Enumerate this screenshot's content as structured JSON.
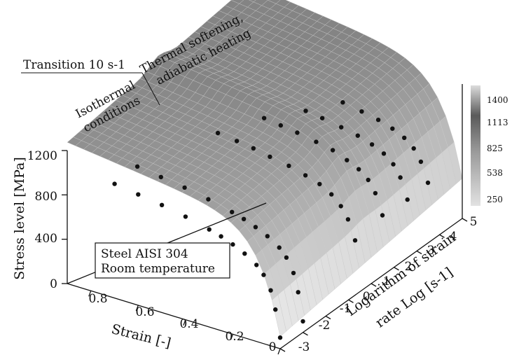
{
  "chart_data": {
    "type": "surface-3d",
    "zlabel": "Stress level [MPa]",
    "xlabel": "Strain [-]",
    "ylabel_line1": "Logarithm of strain",
    "ylabel_line2": "rate Log [s-1]",
    "z_ticks": [
      "0",
      "400",
      "800",
      "1200"
    ],
    "x_ticks": [
      "0.8",
      "0.6",
      "0.4",
      "0.2",
      "0"
    ],
    "y_ticks": [
      "-3",
      "-2",
      "-1",
      "0",
      "1",
      "2",
      "3",
      "4",
      "5"
    ],
    "zlim": [
      0,
      1400
    ],
    "xlim": [
      0,
      0.9
    ],
    "ylim": [
      -3,
      5
    ],
    "colorbar": {
      "ticks": [
        "1400",
        "1113",
        "825",
        "538",
        "250"
      ],
      "range": [
        250,
        1400
      ],
      "colors": [
        "#dedede",
        "#5a5a5a"
      ]
    },
    "annotations": {
      "transition": "Transition 10 s-1",
      "isothermal_line1": "Isothermal",
      "isothermal_line2": "conditions",
      "softening_line1": "Thermal softening,",
      "softening_line2": "adiabatic heating",
      "material_line1": "Steel AISI 304",
      "material_line2": "Room temperature"
    },
    "series": [
      {
        "log_rate": -3.0,
        "strain": [
          0.0,
          0.02,
          0.04,
          0.07,
          0.1,
          0.15,
          0.2,
          0.25,
          0.3,
          0.4,
          0.5,
          0.6,
          0.7
        ],
        "stress": [
          100,
          340,
          500,
          620,
          690,
          760,
          810,
          850,
          880,
          930,
          970,
          1000,
          1030
        ]
      },
      {
        "log_rate": -2.0,
        "strain": [
          0.0,
          0.02,
          0.04,
          0.07,
          0.1,
          0.15,
          0.2,
          0.25,
          0.3,
          0.4,
          0.5,
          0.6,
          0.7
        ],
        "stress": [
          100,
          350,
          510,
          630,
          700,
          770,
          820,
          860,
          890,
          940,
          980,
          1010,
          1040
        ]
      },
      {
        "log_rate": 0.5,
        "strain": [
          0.02,
          0.05,
          0.08,
          0.12,
          0.17,
          0.23,
          0.3,
          0.38,
          0.45,
          0.52,
          0.6
        ],
        "stress": [
          450,
          620,
          720,
          800,
          860,
          900,
          940,
          970,
          1000,
          1020,
          1040
        ]
      },
      {
        "log_rate": 1.7,
        "strain": [
          0.02,
          0.05,
          0.08,
          0.12,
          0.17,
          0.23,
          0.3,
          0.38,
          0.45,
          0.52
        ],
        "stress": [
          500,
          680,
          780,
          850,
          900,
          950,
          980,
          1010,
          1030,
          1050
        ]
      },
      {
        "log_rate": 2.8,
        "strain": [
          0.02,
          0.05,
          0.08,
          0.12,
          0.17,
          0.23,
          0.3,
          0.38,
          0.45
        ],
        "stress": [
          480,
          660,
          760,
          830,
          880,
          920,
          950,
          980,
          1000
        ]
      },
      {
        "log_rate": 3.7,
        "strain": [
          0.02,
          0.05,
          0.08,
          0.12,
          0.17,
          0.23,
          0.3,
          0.38
        ],
        "stress": [
          500,
          670,
          770,
          840,
          890,
          930,
          960,
          990
        ]
      }
    ]
  }
}
